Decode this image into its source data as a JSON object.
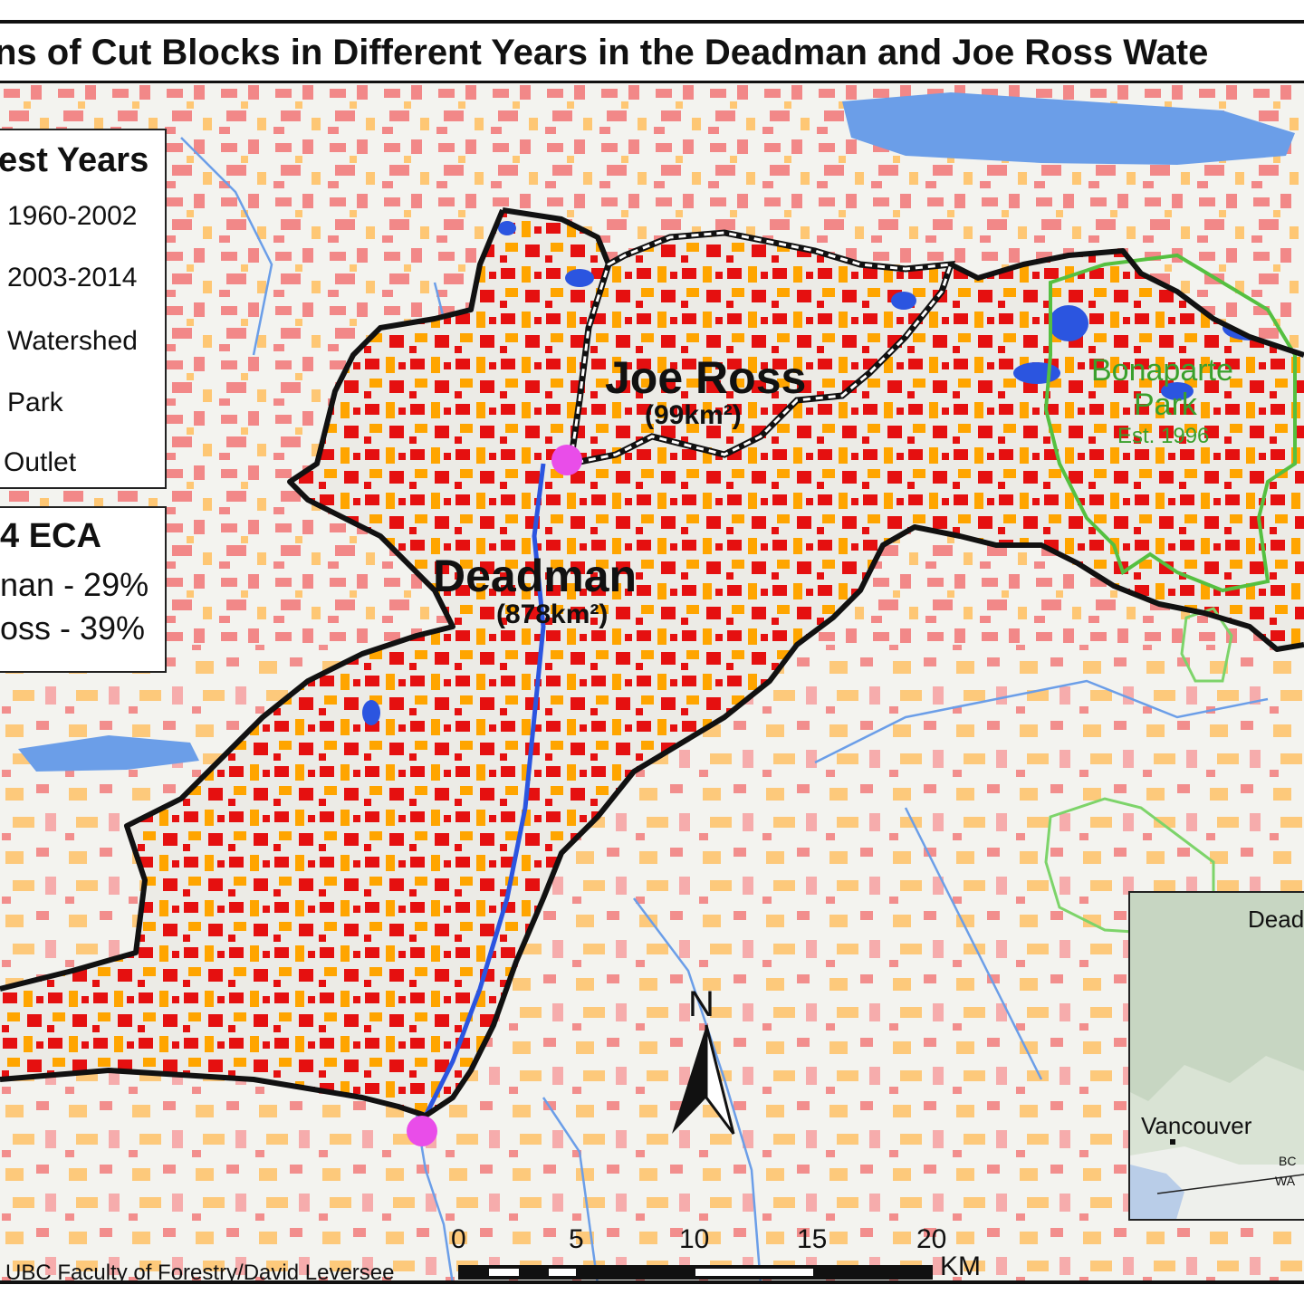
{
  "title": "ns of Cut Blocks in Different Years in the Deadman and Joe Ross Wate",
  "legend": {
    "title": "est Years",
    "items": [
      {
        "label": "1960-2002",
        "color": "#f08080"
      },
      {
        "label": "2003-2014",
        "color": "#ffb347"
      },
      {
        "label": "Watershed"
      },
      {
        "label": "Park",
        "color": "#66cc55"
      },
      {
        "label": "Outlet",
        "color": "#ee44ee"
      }
    ]
  },
  "eca": {
    "title": "4 ECA",
    "lines": [
      "nan - 29%",
      "oss - 39%"
    ]
  },
  "watersheds": {
    "deadman": {
      "name": "Deadman",
      "area": "(878km²)"
    },
    "joe_ross": {
      "name": "Joe Ross",
      "area": "(99km²)"
    }
  },
  "park": {
    "name_line1": "Bonaparte",
    "name_line2": "Park",
    "established": "Est. 1996"
  },
  "north_arrow": "N",
  "scale": {
    "ticks": [
      "0",
      "5",
      "10",
      "15",
      "20"
    ],
    "unit": "KM"
  },
  "credit": "UBC Faculty of Forestry/David Leversee",
  "inset": {
    "places": [
      "Dead",
      "Vancouver",
      "BC",
      "WA"
    ]
  },
  "colors": {
    "cut_old": "#f27c7c",
    "cut_new": "#ffb547",
    "cut_inside_old": "#e51010",
    "cut_inside_new": "#ffa500",
    "water": "#6b9ee8",
    "park_outline": "#55c040",
    "outlet": "#e94de9"
  }
}
